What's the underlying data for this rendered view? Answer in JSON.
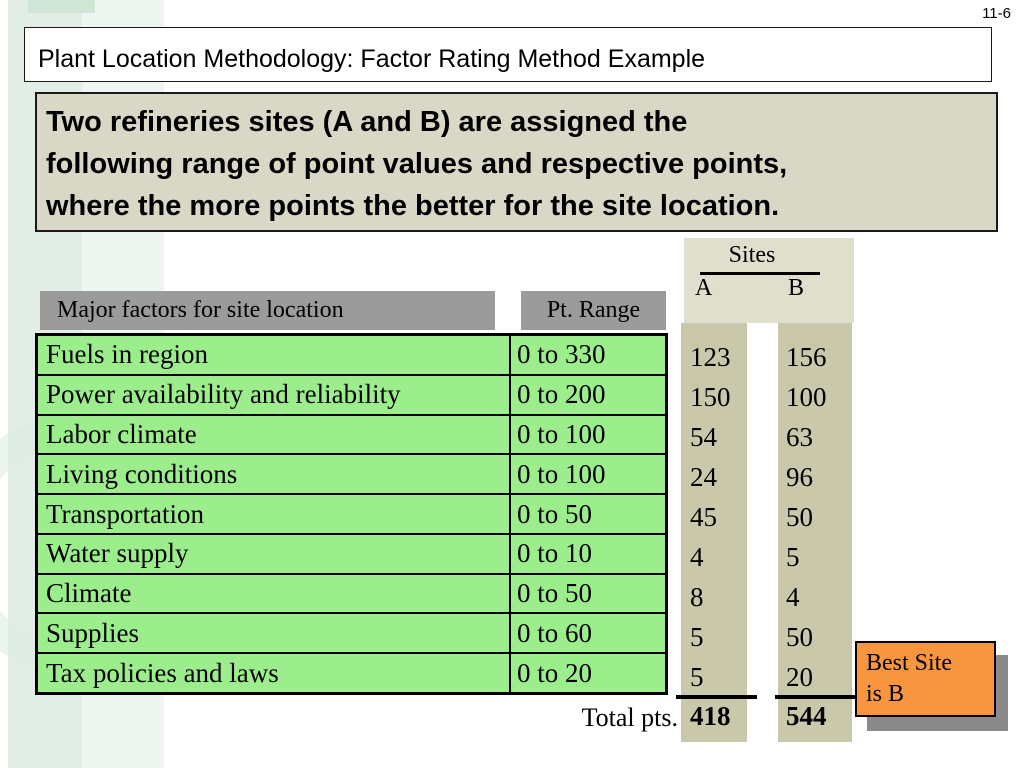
{
  "page_number": "11-6",
  "title": "Plant Location Methodology: Factor Rating Method Example",
  "intro": {
    "lines": [
      "Two refineries sites (A and B) are assigned the",
      "following range of point values and respective points,",
      "where the more points the better for the site location."
    ]
  },
  "table": {
    "factors_header": "Major factors for site location",
    "range_header": "Pt. Range",
    "sites_header": "Sites",
    "site_a_label": "A",
    "site_b_label": "B",
    "rows": [
      {
        "factor": "Fuels in region",
        "range": "0 to 330",
        "a": "123",
        "b": "156"
      },
      {
        "factor": "Power availability and reliability",
        "range": "0 to 200",
        "a": "150",
        "b": "100"
      },
      {
        "factor": "Labor climate",
        "range": "0 to 100",
        "a": "54",
        "b": "63"
      },
      {
        "factor": "Living conditions",
        "range": "0 to 100",
        "a": "24",
        "b": "96"
      },
      {
        "factor": "Transportation",
        "range": "0 to 50",
        "a": "45",
        "b": "50"
      },
      {
        "factor": "Water supply",
        "range": "0 to 10",
        "a": "4",
        "b": "5"
      },
      {
        "factor": "Climate",
        "range": "0 to 50",
        "a": "8",
        "b": "4"
      },
      {
        "factor": "Supplies",
        "range": "0 to 60",
        "a": "5",
        "b": "50"
      },
      {
        "factor": "Tax policies and laws",
        "range": "0 to 20",
        "a": "5",
        "b": "20"
      }
    ],
    "total_label": "Total pts.",
    "total_a": "418",
    "total_b": "544"
  },
  "callout": {
    "lines": [
      "Best Site",
      "is B"
    ]
  },
  "colors": {
    "green": "#9cee8d",
    "tan": "#c9c8ab",
    "sitesbg": "#e0dfce",
    "beige": "#d9d8c6",
    "graybar": "#9b9b9b",
    "orange": "#f8953f",
    "shadow": "#8a8a8a",
    "band1": "#e2eee5",
    "band2": "#eff5f0",
    "topcap": "#cfe5d5",
    "ring": "#dcebe2"
  }
}
